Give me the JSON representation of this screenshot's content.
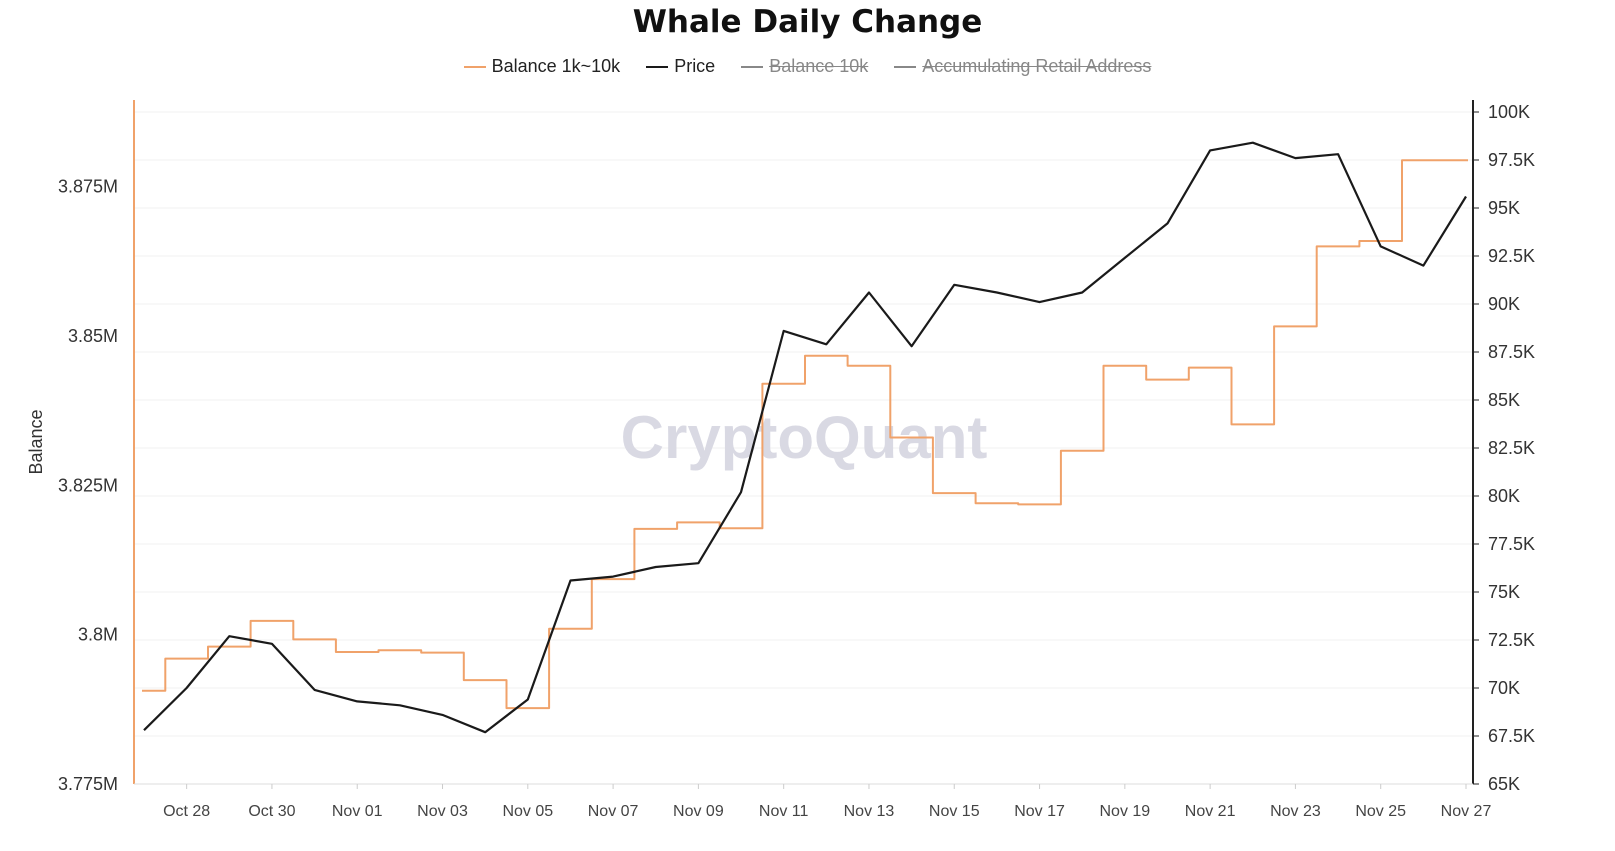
{
  "title": "Whale Daily Change",
  "legend": [
    {
      "label": "Balance 1k~10k",
      "color": "#f0a26a",
      "hidden": false
    },
    {
      "label": "Price",
      "color": "#1a1a1a",
      "hidden": false
    },
    {
      "label": "Balance 10k",
      "color": "#888888",
      "hidden": true
    },
    {
      "label": "Accumulating Retail Address",
      "color": "#888888",
      "hidden": true
    }
  ],
  "watermark": "CryptoQuant",
  "chart_data": {
    "type": "line",
    "x": [
      "Oct 27",
      "Oct 28",
      "Oct 29",
      "Oct 30",
      "Oct 31",
      "Nov 01",
      "Nov 02",
      "Nov 03",
      "Nov 04",
      "Nov 05",
      "Nov 06",
      "Nov 07",
      "Nov 08",
      "Nov 09",
      "Nov 10",
      "Nov 11",
      "Nov 12",
      "Nov 13",
      "Nov 14",
      "Nov 15",
      "Nov 16",
      "Nov 17",
      "Nov 18",
      "Nov 19",
      "Nov 20",
      "Nov 21",
      "Nov 22",
      "Nov 23",
      "Nov 24",
      "Nov 25",
      "Nov 26",
      "Nov 27"
    ],
    "x_tick_labels": [
      "Oct 28",
      "Oct 30",
      "Nov 01",
      "Nov 03",
      "Nov 05",
      "Nov 07",
      "Nov 09",
      "Nov 11",
      "Nov 13",
      "Nov 15",
      "Nov 17",
      "Nov 19",
      "Nov 21",
      "Nov 23",
      "Nov 25",
      "Nov 27"
    ],
    "series": [
      {
        "name": "Balance 1k~10k",
        "axis": "left",
        "step": true,
        "color": "#f0a26a",
        "values": [
          3790600,
          3796000,
          3798000,
          3802300,
          3799200,
          3797100,
          3797400,
          3797000,
          3792400,
          3787700,
          3801000,
          3809300,
          3817700,
          3818800,
          3817800,
          3842000,
          3846700,
          3845000,
          3833000,
          3823700,
          3822000,
          3821800,
          3830800,
          3845000,
          3842700,
          3844700,
          3835200,
          3851600,
          3865000,
          3865900,
          3879400,
          3879400
        ]
      },
      {
        "name": "Price",
        "axis": "right",
        "step": false,
        "color": "#1a1a1a",
        "values": [
          67800,
          70000,
          72700,
          72300,
          69900,
          69300,
          69100,
          68600,
          67700,
          69400,
          75600,
          75800,
          76300,
          76500,
          80200,
          88600,
          87900,
          90600,
          87800,
          91000,
          90600,
          90100,
          90600,
          92400,
          94200,
          98000,
          98400,
          97600,
          97800,
          93000,
          92000,
          95600
        ]
      }
    ],
    "y_left": {
      "label": "Balance",
      "ticks": [
        "3.775M",
        "3.8M",
        "3.825M",
        "3.85M",
        "3.875M"
      ],
      "min": 3775000,
      "max": 3889000
    },
    "y_right": {
      "ticks": [
        "65K",
        "67.5K",
        "70K",
        "72.5K",
        "75K",
        "77.5K",
        "80K",
        "82.5K",
        "85K",
        "87.5K",
        "90K",
        "92.5K",
        "95K",
        "97.5K",
        "100K"
      ]
    },
    "grid": true
  }
}
